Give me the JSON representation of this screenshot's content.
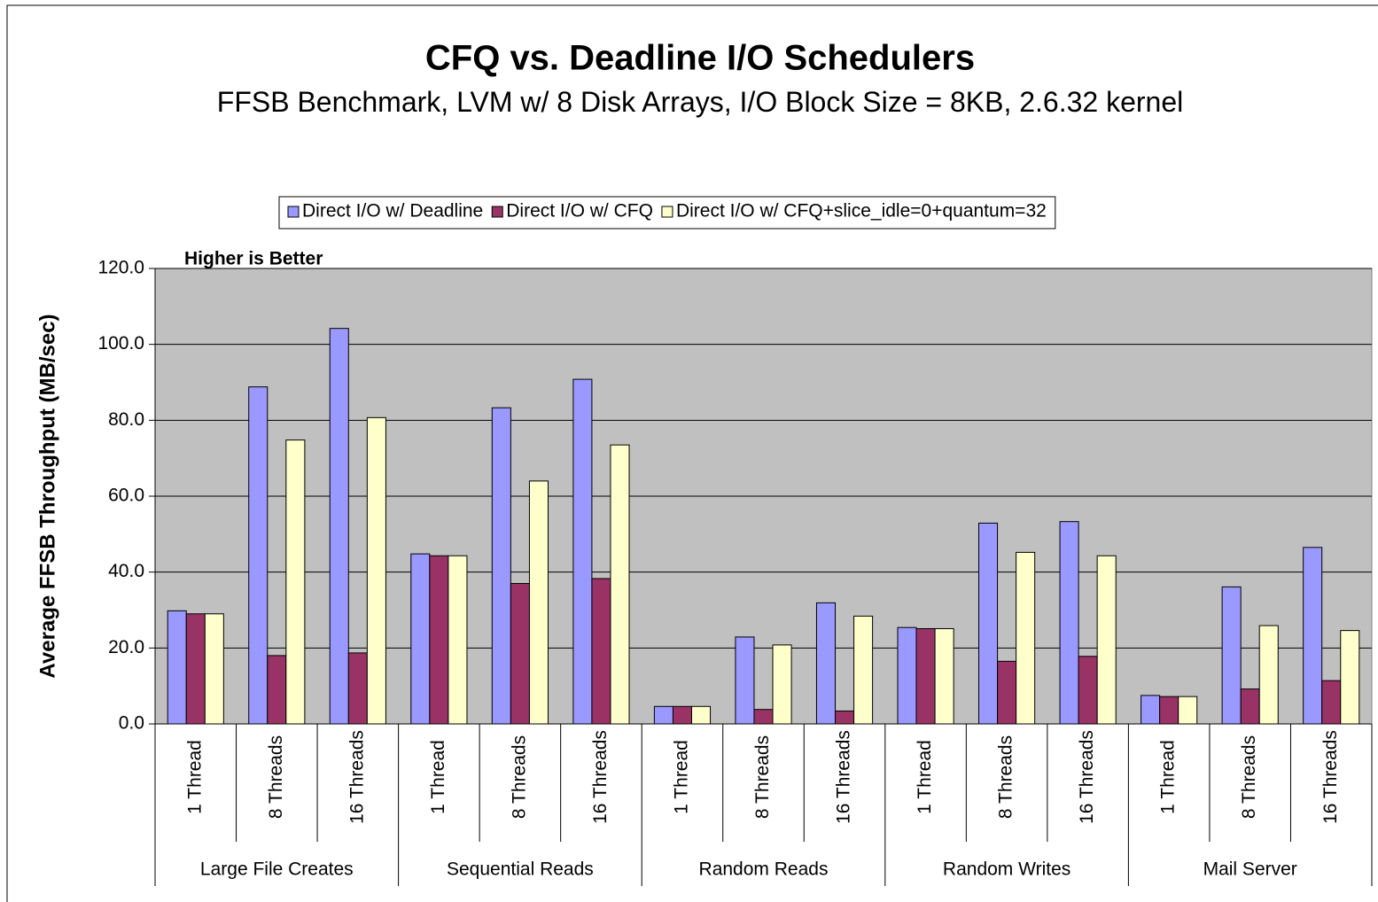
{
  "chart_data": {
    "type": "bar",
    "title": "CFQ vs. Deadline I/O Schedulers",
    "subtitle": "FFSB Benchmark, LVM w/ 8 Disk Arrays, I/O Block Size = 8KB, 2.6.32 kernel",
    "annotation": "Higher is Better",
    "y_label": "Average FFSB Throughput (MB/sec)",
    "categories": [
      "1 Thread",
      "8 Threads",
      "16 Threads",
      "1 Thread",
      "8 Threads",
      "16 Threads",
      "1 Thread",
      "8 Threads",
      "16 Threads",
      "1 Thread",
      "8 Threads",
      "16 Threads",
      "1 Thread",
      "8 Threads",
      "16 Threads"
    ],
    "groups": [
      "Large File Creates",
      "Sequential Reads",
      "Random Reads",
      "Random Writes",
      "Mail Server"
    ],
    "series": [
      {
        "name": "Direct I/O w/ Deadline",
        "color": "#9999ff",
        "values": [
          29.8,
          88.8,
          104.2,
          44.8,
          83.3,
          90.8,
          4.6,
          22.9,
          31.9,
          25.4,
          52.9,
          53.3,
          7.5,
          36.1,
          46.5
        ]
      },
      {
        "name": "Direct I/O w/ CFQ",
        "color": "#993366",
        "values": [
          29.0,
          18.0,
          18.7,
          44.3,
          37.0,
          38.3,
          4.6,
          3.8,
          3.4,
          25.1,
          16.5,
          17.8,
          7.2,
          9.2,
          11.4
        ]
      },
      {
        "name": "Direct I/O w/ CFQ+slice_idle=0+quantum=32",
        "color": "#ffffcc",
        "values": [
          29.0,
          74.8,
          80.7,
          44.3,
          64.0,
          73.5,
          4.6,
          20.8,
          28.4,
          25.1,
          45.2,
          44.3,
          7.2,
          25.9,
          24.6
        ]
      }
    ],
    "ylim": [
      0,
      120
    ],
    "yticks": [
      {
        "value": 0,
        "label": "0.0"
      },
      {
        "value": 20,
        "label": "20.0"
      },
      {
        "value": 40,
        "label": "40.0"
      },
      {
        "value": 60,
        "label": "60.0"
      },
      {
        "value": 80,
        "label": "80.0"
      },
      {
        "value": 100,
        "label": "100.0"
      },
      {
        "value": 120,
        "label": "120.0"
      }
    ],
    "grid": true,
    "plot_background": "#c0c0c0",
    "legend": "top"
  }
}
